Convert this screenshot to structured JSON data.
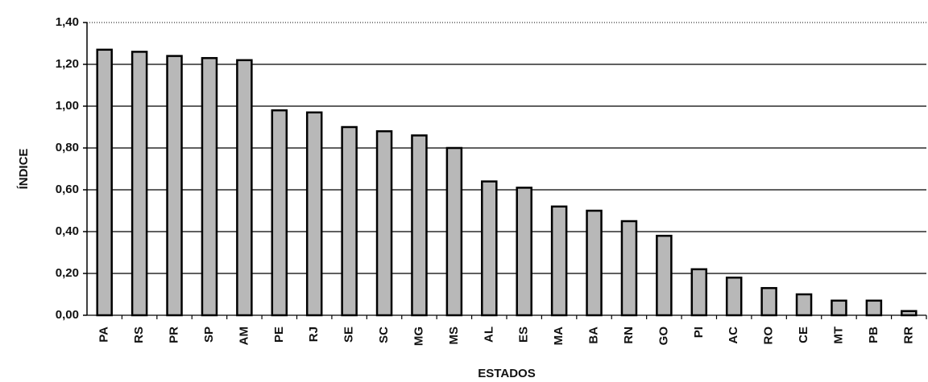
{
  "chart_data": {
    "type": "bar",
    "xlabel": "ESTADOS",
    "ylabel": "ÍNDICE",
    "categories": [
      "PA",
      "RS",
      "PR",
      "SP",
      "AM",
      "PE",
      "RJ",
      "SE",
      "SC",
      "MG",
      "MS",
      "AL",
      "ES",
      "MA",
      "BA",
      "RN",
      "GO",
      "PI",
      "AC",
      "RO",
      "CE",
      "MT",
      "PB",
      "RR"
    ],
    "values": [
      1.27,
      1.26,
      1.24,
      1.23,
      1.22,
      0.98,
      0.97,
      0.9,
      0.88,
      0.86,
      0.8,
      0.64,
      0.61,
      0.52,
      0.5,
      0.45,
      0.38,
      0.22,
      0.18,
      0.13,
      0.1,
      0.07,
      0.07,
      0.02
    ],
    "color": "#b8b8b8",
    "ylim": [
      0,
      1.4
    ],
    "yticks": [
      {
        "value": 0,
        "label": "0,00"
      },
      {
        "value": 0.2,
        "label": "0,20"
      },
      {
        "value": 0.4,
        "label": "0,40"
      },
      {
        "value": 0.6,
        "label": "0,60"
      },
      {
        "value": 0.8,
        "label": "0,80"
      },
      {
        "value": 1.0,
        "label": "1,00"
      },
      {
        "value": 1.2,
        "label": "1,20"
      },
      {
        "value": 1.4,
        "label": "1,40"
      }
    ],
    "grid": true
  }
}
